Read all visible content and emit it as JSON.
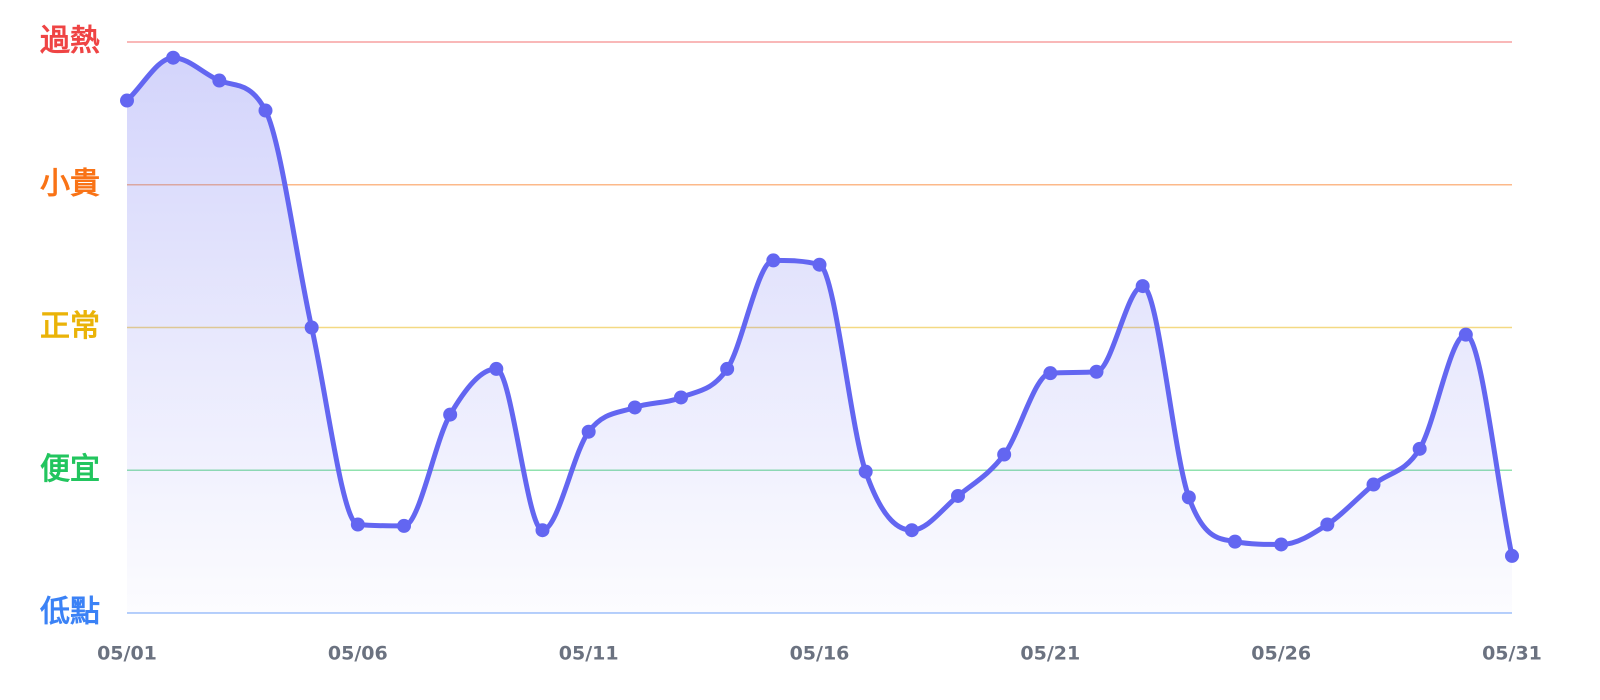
{
  "chart_data": {
    "type": "line",
    "categories": [
      "05/01",
      null,
      null,
      null,
      null,
      "05/06",
      null,
      null,
      null,
      null,
      "05/11",
      null,
      null,
      null,
      null,
      "05/16",
      null,
      null,
      null,
      null,
      "05/21",
      null,
      null,
      null,
      null,
      "05/26",
      null,
      null,
      null,
      null,
      "05/31"
    ],
    "category_label_colors": [
      "#6b7280",
      null,
      null,
      null,
      null,
      "#6b7280",
      null,
      null,
      null,
      null,
      "#6b7280",
      null,
      null,
      null,
      null,
      "#ef4444",
      null,
      null,
      null,
      null,
      "#6b7280",
      null,
      null,
      null,
      null,
      "#6b7280",
      null,
      null,
      null,
      null,
      "#ef4444"
    ],
    "series": [
      {
        "color": "#6366f1",
        "values": [
          3.59,
          3.89,
          3.73,
          3.52,
          2.0,
          0.62,
          0.61,
          1.39,
          1.71,
          0.58,
          1.27,
          1.44,
          1.51,
          1.71,
          2.47,
          2.44,
          0.99,
          0.58,
          0.82,
          1.11,
          1.68,
          1.69,
          2.29,
          0.81,
          0.5,
          0.48,
          0.62,
          0.9,
          1.15,
          1.95,
          0.4
        ]
      }
    ],
    "ylim": [
      0,
      4
    ],
    "yticks": [
      {
        "value": 0,
        "label": "低點"
      },
      {
        "value": 1,
        "label": "便宜"
      },
      {
        "value": 2,
        "label": "正常"
      },
      {
        "value": 3,
        "label": "小貴"
      },
      {
        "value": 4,
        "label": "過熱"
      }
    ],
    "ytick_colors": [
      "#3b82f6",
      "#22c55e",
      "#eab308",
      "#f97316",
      "#ef4444"
    ],
    "grid": true,
    "smooth": true,
    "area_fill": true
  }
}
